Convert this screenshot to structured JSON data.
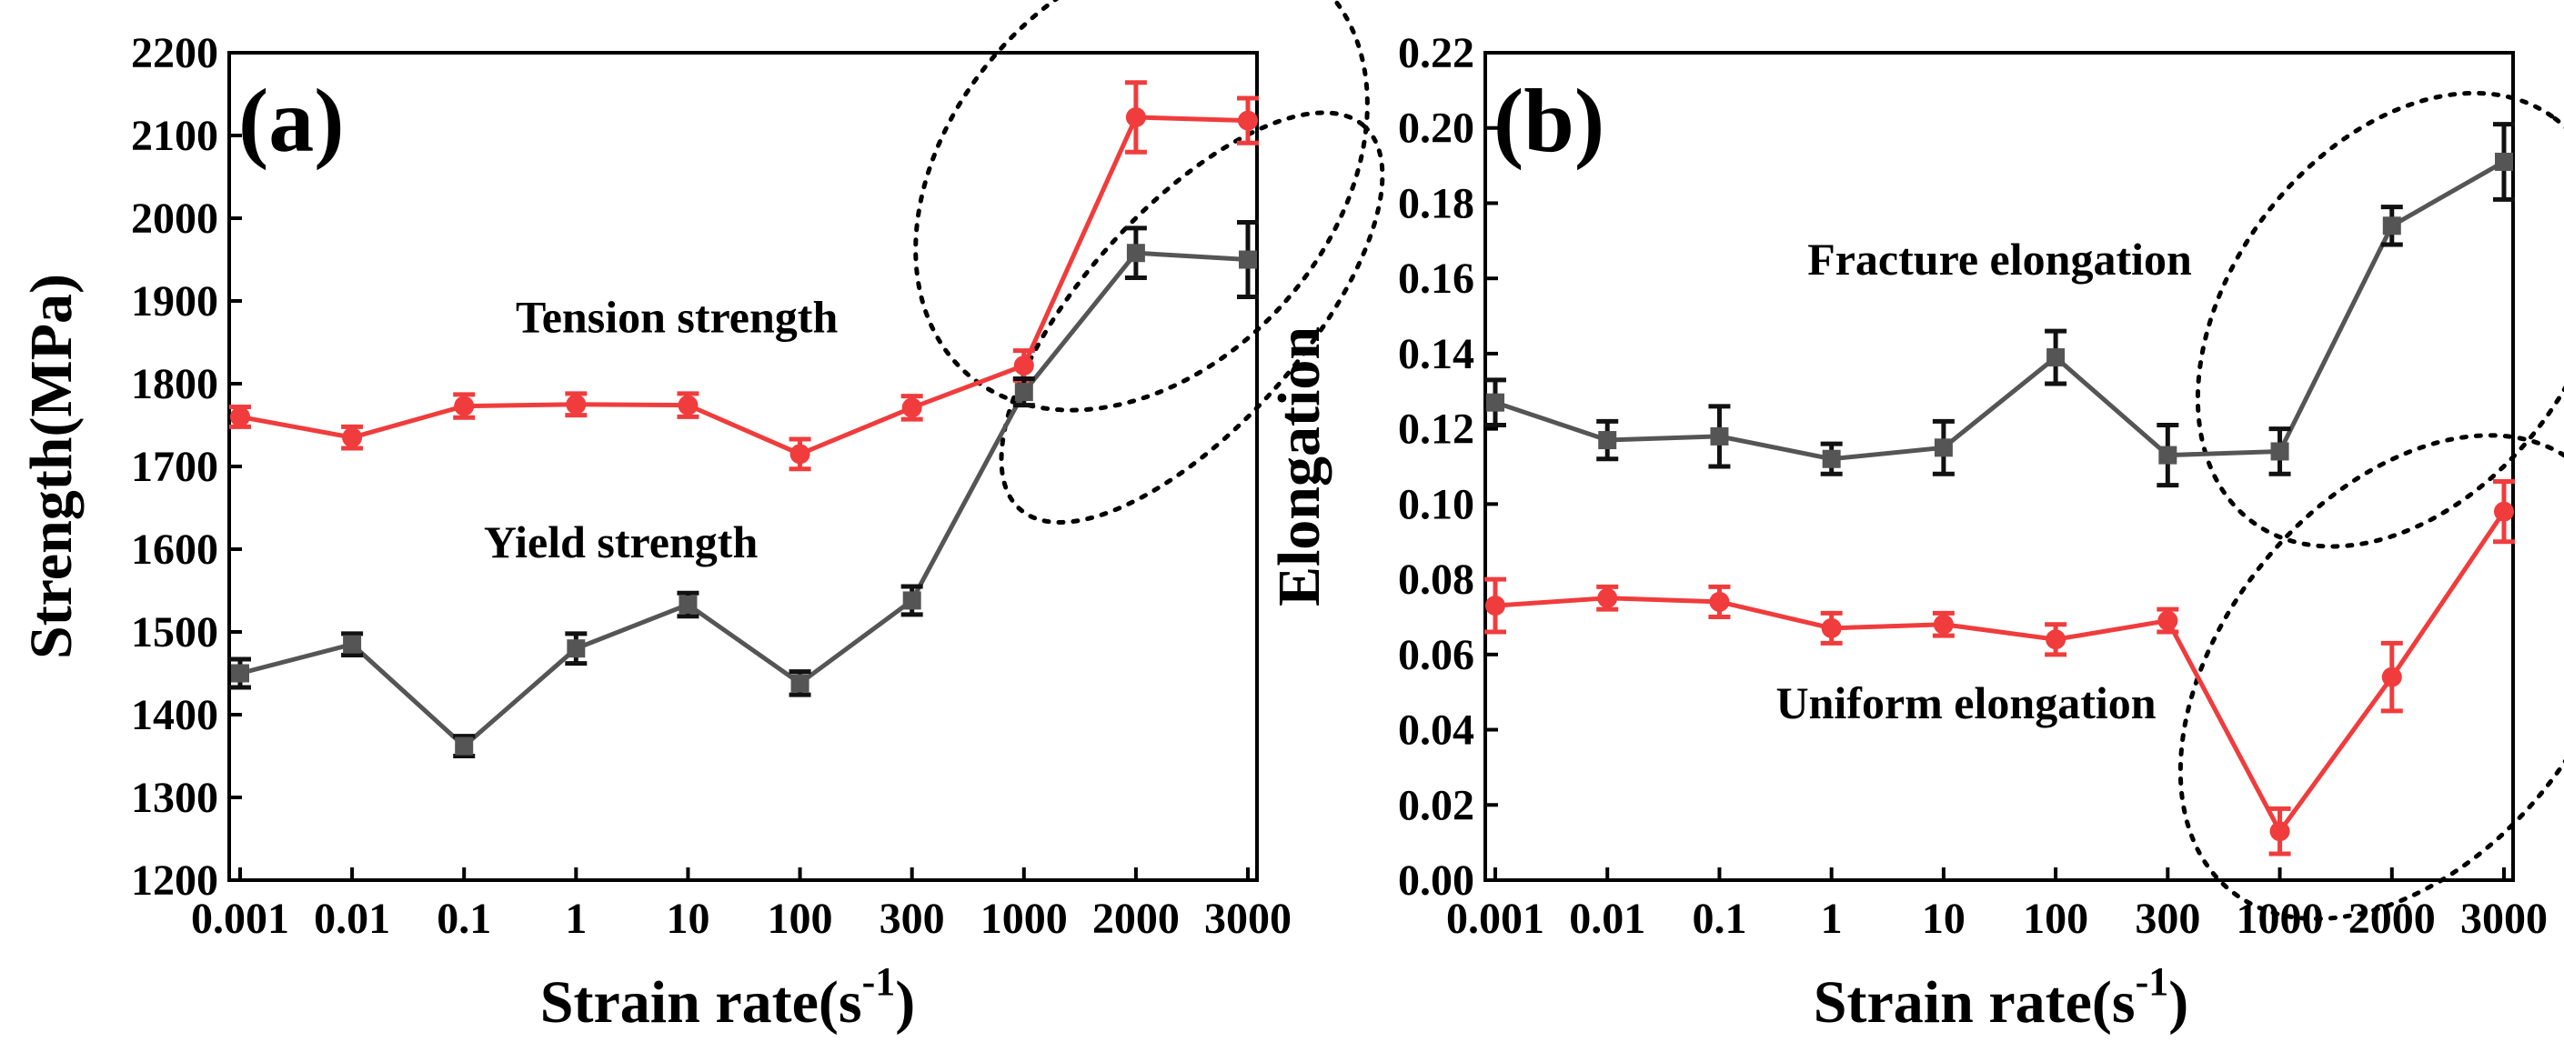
{
  "chart_data": [
    {
      "type": "line",
      "panel_label": "(a)",
      "xlabel": "Strain rate(s",
      "xlabel_sup": "-1",
      "xlabel_close": ")",
      "ylabel": "Strength(MPa)",
      "categories": [
        "0.001",
        "0.01",
        "0.1",
        "1",
        "10",
        "100",
        "300",
        "1000",
        "2000",
        "3000"
      ],
      "ylim": [
        1200,
        2200
      ],
      "yticks": [
        "1200",
        "1300",
        "1400",
        "1500",
        "1600",
        "1700",
        "1800",
        "1900",
        "2000",
        "2100",
        "2200"
      ],
      "series": [
        {
          "name": "Tension strength",
          "color": "#f03c3c",
          "marker": "circle",
          "values": [
            1760,
            1735,
            1773,
            1775,
            1774,
            1715,
            1771,
            1822,
            2122,
            2118
          ],
          "errors": [
            12,
            13,
            14,
            13,
            14,
            18,
            14,
            18,
            42,
            27
          ]
        },
        {
          "name": "Yield strength",
          "color": "#555555",
          "marker": "square",
          "values": [
            1450,
            1485,
            1362,
            1480,
            1533,
            1438,
            1538,
            1790,
            1958,
            1950
          ],
          "errors": [
            17,
            13,
            12,
            18,
            14,
            14,
            17,
            16,
            30,
            45
          ]
        }
      ],
      "annotations": [
        {
          "text": "Tension strength",
          "x": 3.9,
          "y": 1862
        },
        {
          "text": "Yield strength",
          "x": 3.4,
          "y": 1590
        }
      ],
      "ellipses": [
        {
          "cx": 8.05,
          "cy": 2050,
          "rx": 2.35,
          "ry": 230,
          "angle": -48
        },
        {
          "cx": 8.5,
          "cy": 1880,
          "rx": 2.3,
          "ry": 132,
          "angle": -48
        }
      ]
    },
    {
      "type": "line",
      "panel_label": "(b)",
      "xlabel": "Strain rate(s",
      "xlabel_sup": "-1",
      "xlabel_close": ")",
      "ylabel": "Elongation",
      "categories": [
        "0.001",
        "0.01",
        "0.1",
        "1",
        "10",
        "100",
        "300",
        "1000",
        "2000",
        "3000"
      ],
      "ylim": [
        0.0,
        0.22
      ],
      "yticks": [
        "0.00",
        "0.02",
        "0.04",
        "0.06",
        "0.08",
        "0.10",
        "0.12",
        "0.14",
        "0.16",
        "0.18",
        "0.20",
        "0.22"
      ],
      "series": [
        {
          "name": "Fracture elongation",
          "color": "#555555",
          "marker": "square",
          "values": [
            0.127,
            0.117,
            0.118,
            0.112,
            0.115,
            0.139,
            0.113,
            0.114,
            0.174,
            0.191
          ],
          "errors": [
            0.006,
            0.005,
            0.008,
            0.004,
            0.007,
            0.007,
            0.008,
            0.006,
            0.005,
            0.01
          ]
        },
        {
          "name": "Uniform elongation",
          "color": "#f03c3c",
          "marker": "circle",
          "values": [
            0.073,
            0.075,
            0.074,
            0.067,
            0.068,
            0.064,
            0.069,
            0.013,
            0.054,
            0.098
          ],
          "errors": [
            0.007,
            0.003,
            0.004,
            0.004,
            0.003,
            0.004,
            0.003,
            0.006,
            0.009,
            0.008
          ]
        }
      ],
      "annotations": [
        {
          "text": "Fracture elongation",
          "x": 4.5,
          "y": 0.161
        },
        {
          "text": "Uniform elongation",
          "x": 4.2,
          "y": 0.043
        }
      ],
      "ellipses": [
        {
          "cx": 8.1,
          "cy": 0.149,
          "rx": 2.25,
          "ry": 0.046,
          "angle": -53
        },
        {
          "cx": 8.1,
          "cy": 0.054,
          "rx": 2.45,
          "ry": 0.048,
          "angle": -51
        }
      ]
    }
  ]
}
